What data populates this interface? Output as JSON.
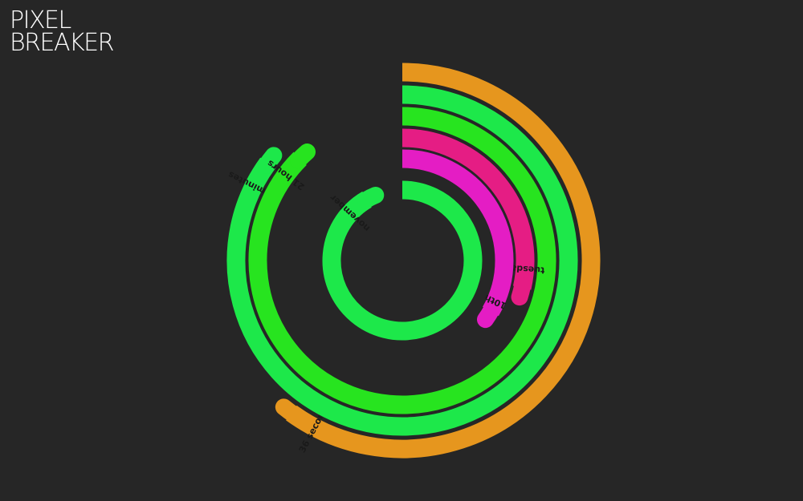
{
  "logo": {
    "line1": "PIXEL",
    "line2": "BREAKER"
  },
  "clock": {
    "rings": [
      {
        "id": "month",
        "label": "november",
        "value": 11,
        "max": 12,
        "color": "#1de84a"
      },
      {
        "id": "date",
        "label": "10th",
        "value": 10,
        "max": 30,
        "color": "#e41dc4"
      },
      {
        "id": "day",
        "label": "tuesday",
        "value": 2,
        "max": 7,
        "color": "#e51d84"
      },
      {
        "id": "hour",
        "label": "21 hours",
        "value": 21,
        "max": 24,
        "color": "#27e41f"
      },
      {
        "id": "minute",
        "label": "51 minutes",
        "value": 51,
        "max": 60,
        "color": "#1de84a"
      },
      {
        "id": "second",
        "label": "36 seconds",
        "value": 36,
        "max": 60,
        "color": "#e6961e"
      }
    ]
  }
}
